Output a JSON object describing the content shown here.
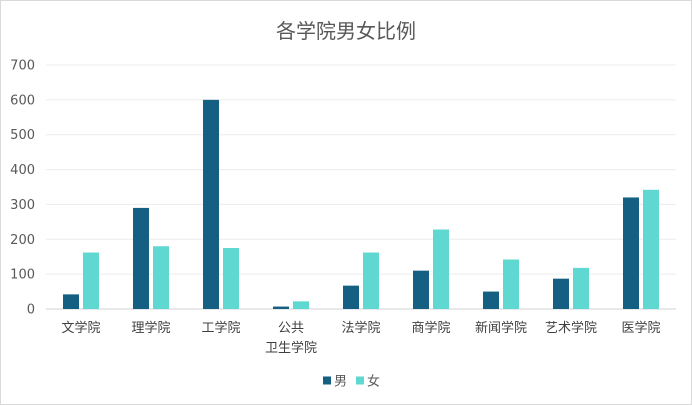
{
  "chart_data": {
    "type": "bar",
    "title": "各学院男女比例",
    "categories": [
      [
        "文学院"
      ],
      [
        "理学院"
      ],
      [
        "工学院"
      ],
      [
        "公共",
        "卫生学院"
      ],
      [
        "法学院"
      ],
      [
        "商学院"
      ],
      [
        "新闻学院"
      ],
      [
        "艺术学院"
      ],
      [
        "医学院"
      ]
    ],
    "series": [
      {
        "name": "男",
        "color": "#156082",
        "values": [
          42,
          290,
          600,
          7,
          67,
          110,
          50,
          87,
          320
        ]
      },
      {
        "name": "女",
        "color": "#5ED8D1",
        "values": [
          162,
          180,
          175,
          22,
          162,
          228,
          142,
          118,
          342
        ]
      }
    ],
    "ylim": [
      0,
      700
    ],
    "yticks": [
      0,
      100,
      200,
      300,
      400,
      500,
      600,
      700
    ],
    "grid": true,
    "legend_position": "bottom"
  }
}
